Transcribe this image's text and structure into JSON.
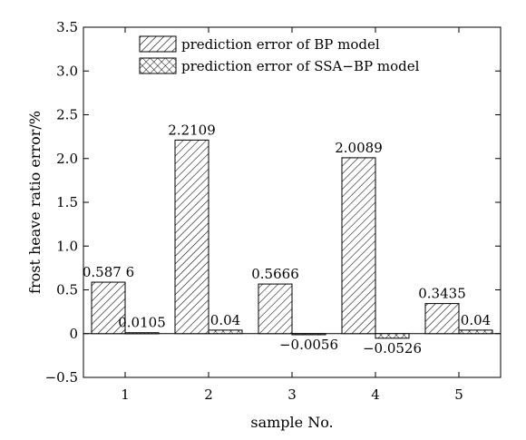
{
  "chart_data": {
    "type": "bar",
    "categories": [
      "1",
      "2",
      "3",
      "4",
      "5"
    ],
    "series": [
      {
        "name": "prediction error of BP model",
        "values": [
          0.5876,
          2.2109,
          0.5666,
          2.0089,
          0.3435
        ],
        "labels": [
          "0.587 6",
          "2.2109",
          "0.5666",
          "2.0089",
          "0.3435"
        ],
        "pattern": "diagonal-hatch"
      },
      {
        "name": "prediction error of SSA−BP model",
        "values": [
          0.0105,
          0.04,
          -0.0056,
          -0.0526,
          0.04
        ],
        "labels": [
          "0.0105",
          "0.04",
          "−0.0056",
          "−0.0526",
          "0.04"
        ],
        "pattern": "cross-hatch"
      }
    ],
    "xlabel": "sample No.",
    "ylabel": "frost heave ratio error/%",
    "ylim": [
      -0.5,
      3.5
    ],
    "yticks": [
      -0.5,
      0,
      0.5,
      1.0,
      1.5,
      2.0,
      2.5,
      3.0,
      3.5
    ],
    "ytick_labels": [
      "−0.5",
      "0",
      "0.5",
      "1.0",
      "1.5",
      "2.0",
      "2.5",
      "3.0",
      "3.5"
    ],
    "grid": false,
    "legend_position": "top-right",
    "zero_line": true
  }
}
